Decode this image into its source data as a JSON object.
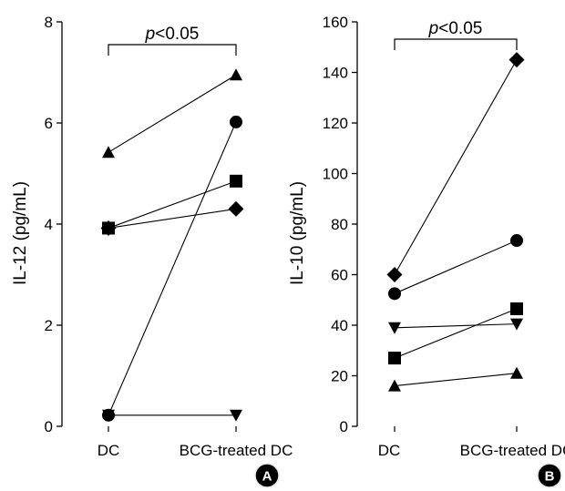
{
  "chart_data": [
    {
      "type": "line",
      "panel_label": "A",
      "ylabel": "IL-12 (pg/mL)",
      "categories": [
        "DC",
        "BCG-treated DC"
      ],
      "ylim": [
        0,
        8
      ],
      "yticks": [
        "0",
        "2",
        "4",
        "6",
        "8"
      ],
      "annotation": {
        "italic": "p",
        "text": "<0.05"
      },
      "series": [
        {
          "marker": "triangle-up",
          "values": [
            5.42,
            6.95
          ]
        },
        {
          "marker": "circle",
          "values": [
            0.22,
            6.02
          ]
        },
        {
          "marker": "square",
          "values": [
            3.92,
            4.85
          ]
        },
        {
          "marker": "diamond",
          "values": [
            3.92,
            4.3
          ]
        },
        {
          "marker": "triangle-down",
          "values": [
            0.22,
            0.22
          ]
        }
      ]
    },
    {
      "type": "line",
      "panel_label": "B",
      "ylabel": "IL-10 (pg/mL)",
      "categories": [
        "DC",
        "BCG-treated DC"
      ],
      "ylim": [
        0,
        160
      ],
      "yticks": [
        "0",
        "20",
        "40",
        "60",
        "80",
        "100",
        "120",
        "140",
        "160"
      ],
      "annotation": {
        "italic": "p",
        "text": "<0.05"
      },
      "series": [
        {
          "marker": "diamond",
          "values": [
            60,
            145
          ]
        },
        {
          "marker": "circle",
          "values": [
            52.5,
            73.5
          ]
        },
        {
          "marker": "triangle-down",
          "values": [
            39,
            40.5
          ]
        },
        {
          "marker": "square",
          "values": [
            27,
            46.5
          ]
        },
        {
          "marker": "triangle-up",
          "values": [
            16,
            21
          ]
        }
      ]
    }
  ],
  "colors": {
    "ink": "#000000",
    "badge": "#e8e8e8"
  }
}
